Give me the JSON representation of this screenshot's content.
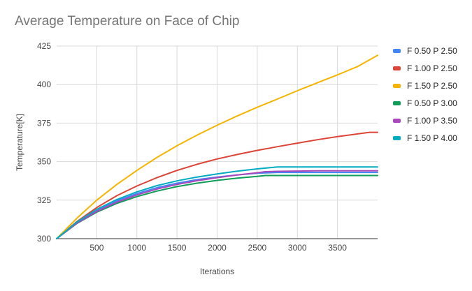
{
  "chart_data": {
    "type": "line",
    "title": "Average Temperature on Face of Chip",
    "xlabel": "Iterations",
    "ylabel": "Temperature[K]",
    "xlim": [
      0,
      4000
    ],
    "ylim": [
      300,
      425
    ],
    "xticks": [
      500,
      1000,
      1500,
      2000,
      2500,
      3000,
      3500
    ],
    "yticks": [
      300,
      325,
      350,
      375,
      400,
      425
    ],
    "grid": true,
    "legend_position": "right",
    "series": [
      {
        "name": "F 0.50 P 2.50",
        "color": "#4285f4",
        "x": [
          0,
          250,
          500,
          750,
          1000,
          1250,
          1500,
          1750,
          2000,
          2250,
          2500,
          2750,
          3000,
          3250,
          3500,
          3750,
          4000
        ],
        "y": [
          300,
          310.3,
          318.3,
          324.5,
          329.3,
          333.1,
          336.0,
          338.3,
          340.0,
          341.4,
          342.5,
          343.0,
          343.0,
          343.0,
          343.0,
          343.0,
          343.0
        ]
      },
      {
        "name": "F 1.00 P 2.50",
        "color": "#db4437",
        "x": [
          0,
          250,
          500,
          750,
          1000,
          1250,
          1500,
          1750,
          2000,
          2250,
          2500,
          2750,
          3000,
          3250,
          3500,
          3750,
          3900,
          4000
        ],
        "y": [
          300,
          311.0,
          320.2,
          327.9,
          334.2,
          339.6,
          344.3,
          348.3,
          351.7,
          354.6,
          357.3,
          359.7,
          362.0,
          364.2,
          366.2,
          368.0,
          369.0,
          369.0
        ]
      },
      {
        "name": "F 1.50 P 2.50",
        "color": "#f4b400",
        "x": [
          0,
          250,
          500,
          750,
          1000,
          1250,
          1500,
          1750,
          2000,
          2250,
          2500,
          2750,
          3000,
          3250,
          3500,
          3750,
          4000
        ],
        "y": [
          300,
          313.2,
          325.0,
          335.2,
          344.3,
          352.7,
          360.3,
          367.2,
          373.6,
          379.6,
          385.3,
          390.6,
          396.0,
          401.2,
          406.3,
          411.7,
          419.0
        ]
      },
      {
        "name": "F 0.50 P 3.00",
        "color": "#0f9d58",
        "x": [
          0,
          250,
          500,
          750,
          1000,
          1250,
          1500,
          1750,
          2000,
          2250,
          2500,
          2600,
          2750,
          3000,
          3250,
          3500,
          3750,
          4000
        ],
        "y": [
          300,
          309.8,
          317.2,
          322.9,
          327.3,
          330.9,
          333.8,
          336.0,
          337.8,
          339.3,
          340.4,
          341.0,
          341.0,
          341.0,
          341.0,
          341.0,
          341.0,
          341.0
        ]
      },
      {
        "name": "F 1.00 P 3.50",
        "color": "#ab47bc",
        "x": [
          0,
          250,
          500,
          750,
          1000,
          1250,
          1500,
          1750,
          2000,
          2250,
          2500,
          2600,
          2750,
          3000,
          3250,
          3500,
          3750,
          4000
        ],
        "y": [
          300,
          310.0,
          317.7,
          323.7,
          328.4,
          332.2,
          335.2,
          337.6,
          339.6,
          341.3,
          342.8,
          343.5,
          343.7,
          343.9,
          344.0,
          344.0,
          344.0,
          344.0
        ]
      },
      {
        "name": "F 1.50 P 4.00",
        "color": "#00acc1",
        "x": [
          0,
          250,
          500,
          750,
          1000,
          1250,
          1500,
          1750,
          2000,
          2250,
          2500,
          2750,
          3000,
          3250,
          3500,
          3750,
          4000
        ],
        "y": [
          300,
          310.7,
          319.0,
          325.4,
          330.4,
          334.4,
          337.5,
          340.0,
          342.0,
          343.8,
          345.3,
          346.5,
          346.5,
          346.5,
          346.5,
          346.5,
          346.5
        ]
      }
    ]
  }
}
